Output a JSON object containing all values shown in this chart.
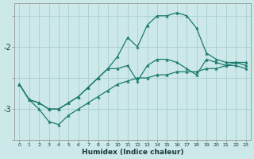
{
  "xlabel": "Humidex (Indice chaleur)",
  "bg_color": "#cce8e8",
  "line_color": "#1a7a6e",
  "grid_color": "#aacece",
  "x_values": [
    0,
    1,
    2,
    3,
    4,
    5,
    6,
    7,
    8,
    9,
    10,
    11,
    12,
    13,
    14,
    15,
    16,
    17,
    18,
    19,
    20,
    21,
    22,
    23
  ],
  "y_top": [
    -2.6,
    -2.85,
    -2.9,
    -3.0,
    -3.0,
    -2.9,
    -2.8,
    -2.65,
    -2.5,
    -2.35,
    -2.15,
    -1.85,
    -2.0,
    -1.65,
    -1.5,
    -1.5,
    -1.45,
    -1.5,
    -1.7,
    -2.1,
    -2.2,
    -2.25,
    -2.25,
    -2.3
  ],
  "y_mid": [
    -2.6,
    -2.85,
    -2.9,
    -3.0,
    -3.0,
    -2.9,
    -2.8,
    -2.65,
    -2.5,
    -2.35,
    -2.35,
    -2.3,
    -2.55,
    -2.3,
    -2.2,
    -2.2,
    -2.25,
    -2.35,
    -2.45,
    -2.2,
    -2.25,
    -2.3,
    -2.3,
    -2.35
  ],
  "y_bot": [
    -2.6,
    -2.85,
    -3.0,
    -3.2,
    -3.25,
    -3.1,
    -3.0,
    -2.9,
    -2.8,
    -2.7,
    -2.6,
    -2.55,
    -2.5,
    -2.5,
    -2.45,
    -2.45,
    -2.4,
    -2.4,
    -2.4,
    -2.35,
    -2.35,
    -2.3,
    -2.25,
    -2.25
  ],
  "yticks": [
    -3,
    -2
  ],
  "xlim": [
    -0.5,
    23.5
  ],
  "ylim": [
    -3.5,
    -1.3
  ]
}
